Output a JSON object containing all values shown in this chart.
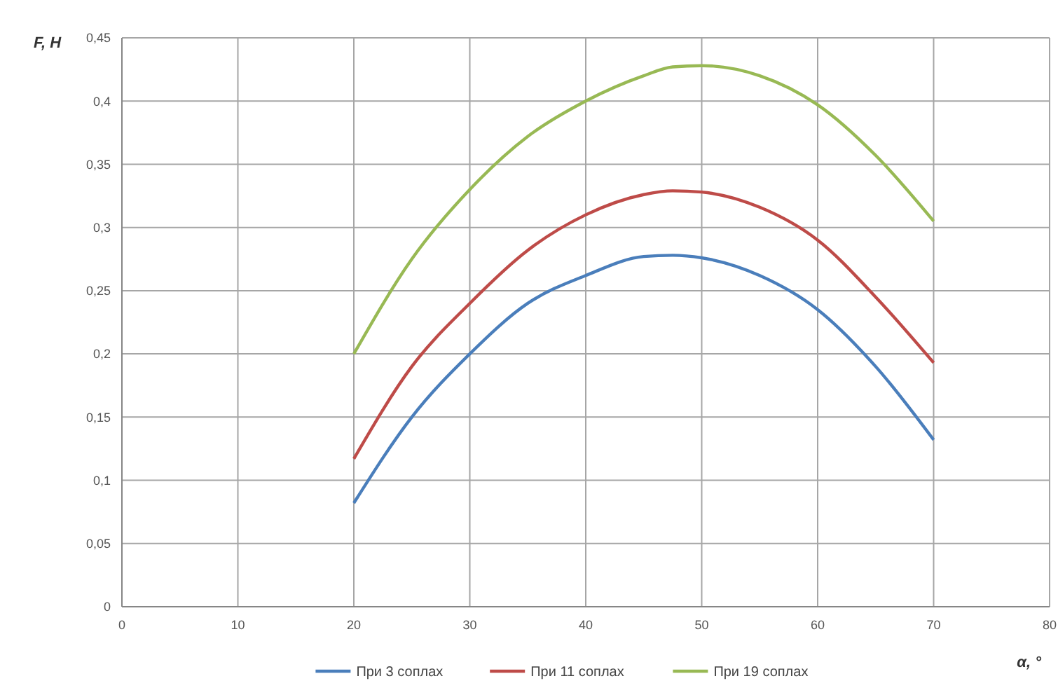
{
  "chart_data": {
    "type": "line",
    "xlabel": "α, °",
    "ylabel": "F, Н",
    "grid": true,
    "legend": "bottom",
    "marker": "none",
    "line_style": "solid",
    "xlim": [
      0,
      80
    ],
    "xticks": [
      0,
      10,
      20,
      30,
      40,
      50,
      60,
      70,
      80
    ],
    "ylim": [
      0,
      0.45
    ],
    "yticks": [
      0,
      {
        "value": 0.05,
        "label": "0,05"
      },
      {
        "value": 0.1,
        "label": "0,1"
      },
      {
        "value": 0.15,
        "label": "0,15"
      },
      {
        "value": 0.2,
        "label": "0,2"
      },
      {
        "value": 0.25,
        "label": "0,25"
      },
      {
        "value": 0.3,
        "label": "0,3"
      },
      {
        "value": 0.35,
        "label": "0,35"
      },
      {
        "value": 0.4,
        "label": "0,4"
      },
      {
        "value": 0.45,
        "label": "0,45"
      }
    ],
    "x": [
      20,
      25,
      30,
      35,
      40,
      45,
      47.5,
      50,
      55,
      60,
      65,
      70
    ],
    "series": [
      {
        "name": "При 3 соплах",
        "color": "#4a7ebb",
        "values": [
          0.082,
          0.15,
          0.2,
          0.24,
          0.262,
          0.277,
          0.278,
          0.276,
          0.262,
          0.235,
          0.19,
          0.132
        ]
      },
      {
        "name": "При 11 соплах",
        "color": "#be4b48",
        "values": [
          0.117,
          0.19,
          0.24,
          0.282,
          0.31,
          0.326,
          0.329,
          0.328,
          0.316,
          0.29,
          0.245,
          0.193
        ]
      },
      {
        "name": "При 19 соплах",
        "color": "#98b954",
        "values": [
          0.2,
          0.275,
          0.33,
          0.372,
          0.4,
          0.42,
          0.427,
          0.428,
          0.42,
          0.397,
          0.357,
          0.305
        ]
      }
    ]
  }
}
